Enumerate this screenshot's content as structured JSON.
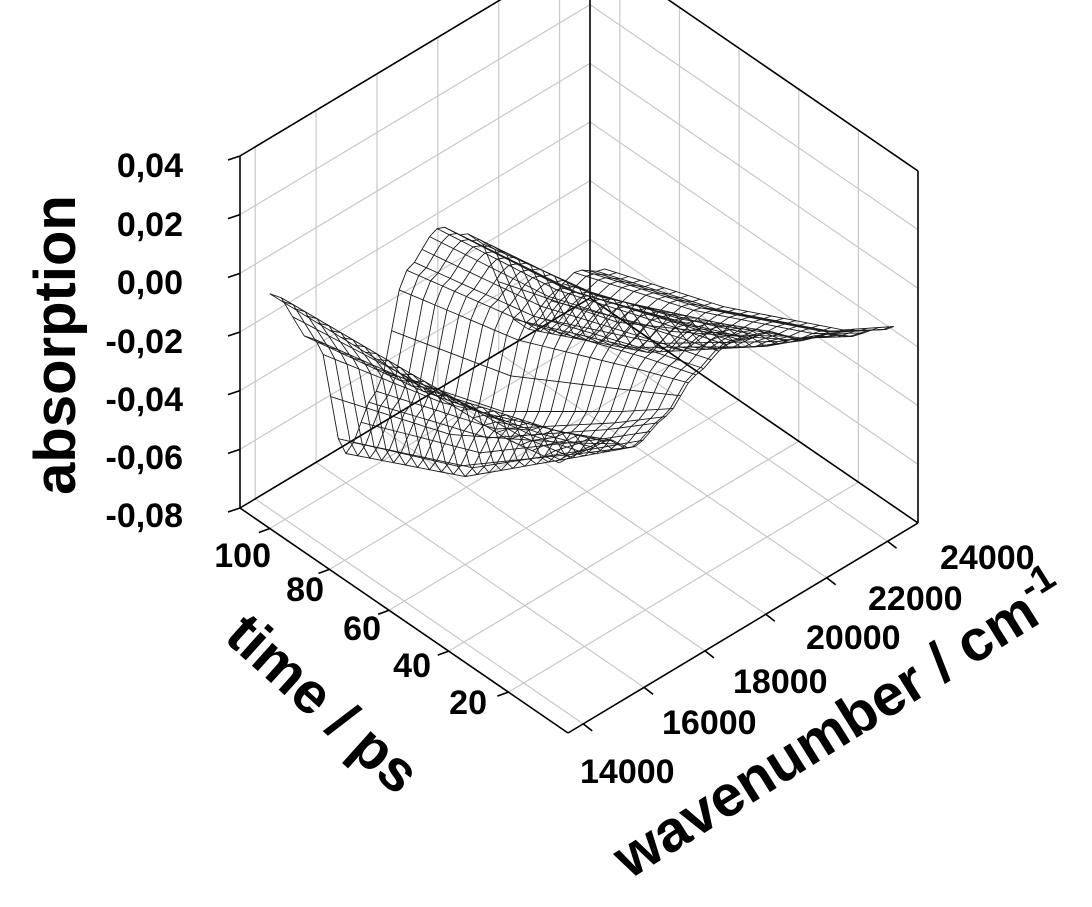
{
  "chart_data": {
    "type": "surface",
    "xlabel": "wavenumber / cm",
    "xlabel_superscript": "-1",
    "ylabel": "time / ps",
    "zlabel": "absorption",
    "x_ticks": [
      "14000",
      "16000",
      "18000",
      "20000",
      "22000",
      "24000"
    ],
    "y_ticks": [
      "20",
      "40",
      "60",
      "80",
      "100"
    ],
    "z_ticks": [
      "0,04",
      "0,02",
      "0,00",
      "-0,02",
      "-0,04",
      "-0,06",
      "-0,08"
    ],
    "xlim": [
      13500,
      25000
    ],
    "ylim": [
      0,
      110
    ],
    "zlim": [
      -0.08,
      0.04
    ],
    "grid": true,
    "series": [
      {
        "time": 100,
        "values": [
          {
            "x": 13500,
            "z": 0.0
          },
          {
            "x": 15000,
            "z": -0.025
          },
          {
            "x": 16000,
            "z": -0.07
          },
          {
            "x": 17000,
            "z": -0.055
          },
          {
            "x": 18000,
            "z": -0.02
          },
          {
            "x": 19000,
            "z": -0.012
          },
          {
            "x": 20000,
            "z": -0.02
          },
          {
            "x": 22000,
            "z": -0.065
          },
          {
            "x": 23500,
            "z": -0.055
          },
          {
            "x": 24500,
            "z": -0.06
          }
        ]
      },
      {
        "time": 60,
        "values": [
          {
            "x": 13500,
            "z": 0.003
          },
          {
            "x": 15000,
            "z": -0.015
          },
          {
            "x": 16000,
            "z": -0.05
          },
          {
            "x": 17000,
            "z": -0.04
          },
          {
            "x": 18000,
            "z": -0.01
          },
          {
            "x": 19000,
            "z": -0.005
          },
          {
            "x": 20000,
            "z": -0.012
          },
          {
            "x": 22000,
            "z": -0.045
          },
          {
            "x": 23500,
            "z": -0.04
          },
          {
            "x": 24500,
            "z": -0.045
          }
        ]
      },
      {
        "time": 20,
        "values": [
          {
            "x": 13500,
            "z": 0.006
          },
          {
            "x": 15000,
            "z": 0.0
          },
          {
            "x": 16000,
            "z": -0.015
          },
          {
            "x": 17000,
            "z": -0.01
          },
          {
            "x": 18000,
            "z": 0.006
          },
          {
            "x": 19000,
            "z": 0.01
          },
          {
            "x": 20000,
            "z": 0.005
          },
          {
            "x": 22000,
            "z": -0.015
          },
          {
            "x": 23500,
            "z": -0.02
          },
          {
            "x": 24500,
            "z": -0.025
          }
        ]
      },
      {
        "time": 3,
        "values": [
          {
            "x": 13500,
            "z": 0.01
          },
          {
            "x": 15000,
            "z": 0.008
          },
          {
            "x": 16000,
            "z": 0.0
          },
          {
            "x": 17000,
            "z": 0.004
          },
          {
            "x": 18000,
            "z": 0.012
          },
          {
            "x": 19000,
            "z": 0.016
          },
          {
            "x": 20000,
            "z": 0.013
          },
          {
            "x": 22000,
            "z": 0.0
          },
          {
            "x": 23500,
            "z": -0.008
          },
          {
            "x": 24500,
            "z": -0.012
          }
        ]
      }
    ]
  }
}
